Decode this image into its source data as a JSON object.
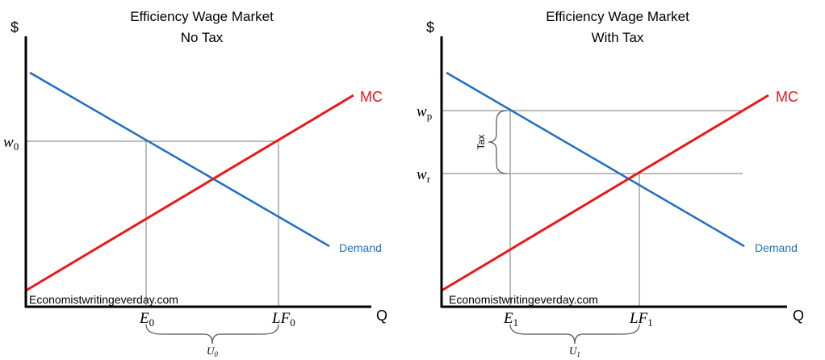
{
  "panels": [
    {
      "title": [
        "Efficiency Wage Market",
        "No Tax"
      ],
      "y_axis": "$",
      "x_axis": "Q",
      "mc": "MC",
      "demand": "Demand",
      "watermark": "Economistwritingeverday.com",
      "wage": {
        "base": "w",
        "sub": "0"
      },
      "e": {
        "base": "E",
        "sub": "0"
      },
      "lf": {
        "base": "LF",
        "sub": "0"
      },
      "u": {
        "base": "U",
        "sub": "0"
      }
    },
    {
      "title": [
        "Efficiency Wage Market",
        "With Tax"
      ],
      "y_axis": "$",
      "x_axis": "Q",
      "mc": "MC",
      "demand": "Demand",
      "watermark": "Economistwritingeverday.com",
      "wp": {
        "base": "w",
        "sub": "p"
      },
      "wr": {
        "base": "w",
        "sub": "r"
      },
      "tax": "Tax",
      "e": {
        "base": "E",
        "sub": "1"
      },
      "lf": {
        "base": "LF",
        "sub": "1"
      },
      "u": {
        "base": "U",
        "sub": "1"
      }
    }
  ]
}
